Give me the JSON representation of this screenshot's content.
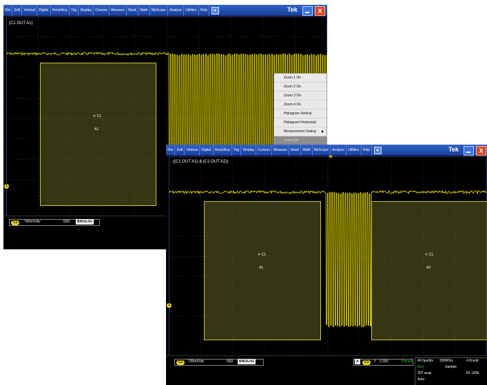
{
  "menu": [
    "File",
    "Edit",
    "Vertical",
    "Digital",
    "Horiz/Acq",
    "Trig",
    "Display",
    "Cursors",
    "Measure",
    "Mask",
    "Math",
    "MyScope",
    "Analyze",
    "Utilities",
    "Help"
  ],
  "brand": "Tek",
  "close_glyph": "X",
  "win1": {
    "title": "(C1 OUT A1)",
    "mask_label": "A1",
    "cursor_label": "C1",
    "status": {
      "ch": "C1",
      "vdiv": "700mV/div",
      "imp": "50Ω",
      "bw_sym": "BW",
      "bw": "16.0G"
    }
  },
  "context_menu": {
    "items": [
      {
        "label": "Zoom 1 On",
        "enabled": true
      },
      {
        "label": "Zoom 2 On",
        "enabled": true
      },
      {
        "label": "Zoom 3 On",
        "enabled": true
      },
      {
        "label": "Zoom 4 On",
        "enabled": true
      },
      {
        "label": "Histogram Vertical",
        "enabled": true
      },
      {
        "label": "Histogram Horizontal",
        "enabled": true
      },
      {
        "label": "Measurement Gating",
        "enabled": true,
        "submenu": true
      },
      {
        "label": "Zoom Off",
        "enabled": false
      }
    ]
  },
  "win2": {
    "title": "((C1 OUT A1) & (C1 OUT A2))",
    "mask1_label": "A1",
    "mask2_label": "A2",
    "cursor_label": "C1",
    "status": {
      "ch": "C1",
      "vdiv": "700mV/div",
      "imp": "50Ω",
      "bw_sym": "BW",
      "bw": "16.0G",
      "trig_src": "A",
      "trig_ch": "C1",
      "trig_level": "2.39V",
      "trig_mode": "Pinned",
      "hdiv": "40.0μs/div",
      "srate": "250MS/s",
      "res": "4.0ns/pt",
      "run": "Run",
      "sample": "Sample",
      "acqs": "307 acqs",
      "rl": "RL:100k",
      "auto": "Auto"
    }
  },
  "colors": {
    "trace": "#f2e600",
    "menubar": "#1f4ab0",
    "mask_fill": "#78782c",
    "run": "#3ccf3c"
  }
}
